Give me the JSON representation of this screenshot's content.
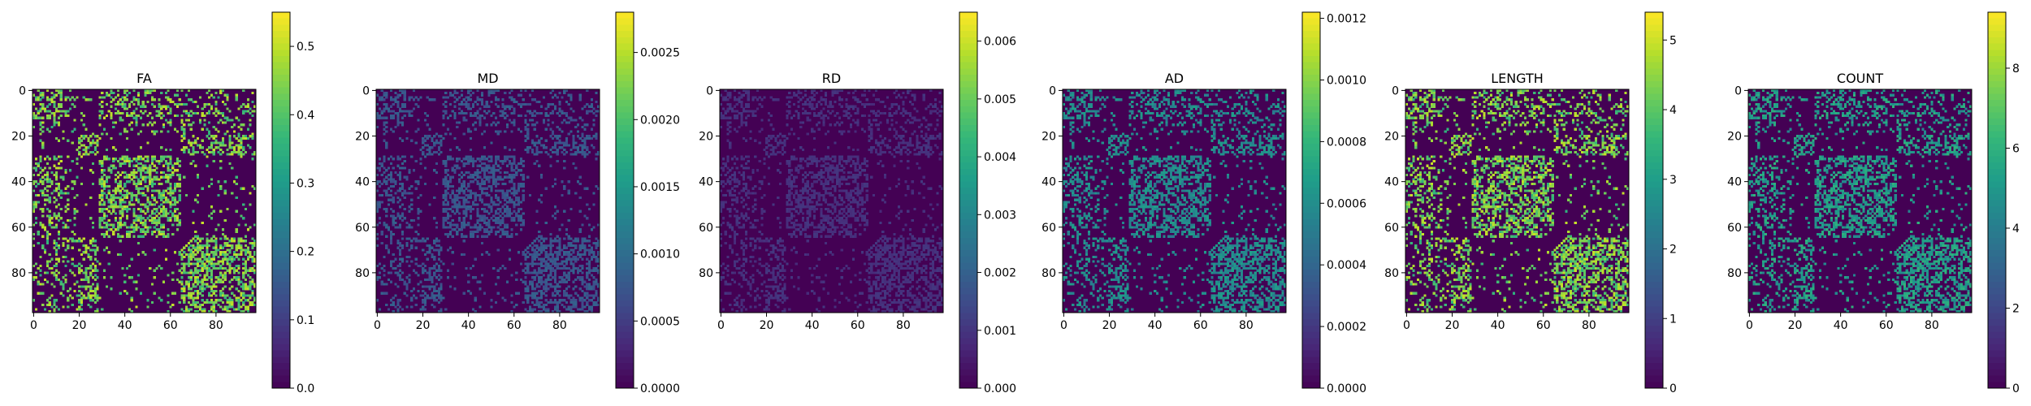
{
  "figure": {
    "background": "#ffffff"
  },
  "chart_data": [
    {
      "type": "heatmap",
      "title": "FA",
      "xlabel": "",
      "ylabel": "",
      "matrix_size": 98,
      "xticks": [
        "0",
        "20",
        "40",
        "60",
        "80"
      ],
      "yticks": [
        "0",
        "20",
        "40",
        "60",
        "80"
      ],
      "colormap": "viridis",
      "vmin": 0.0,
      "vmax": 0.55,
      "colorbar_ticks": [
        "0.0",
        "0.1",
        "0.2",
        "0.3",
        "0.4",
        "0.5"
      ],
      "colorbar_tick_values": [
        0.0,
        0.1,
        0.2,
        0.3,
        0.4,
        0.5
      ],
      "typical_value_fraction": 0.78,
      "density_fraction": 0.28,
      "pattern": "block-modular symmetric connectivity; dense blocks near indices 0-12, 20-28, 30-65 and 65-98"
    },
    {
      "type": "heatmap",
      "title": "MD",
      "xlabel": "",
      "ylabel": "",
      "matrix_size": 98,
      "xticks": [
        "0",
        "20",
        "40",
        "60",
        "80"
      ],
      "yticks": [
        "0",
        "20",
        "40",
        "60",
        "80"
      ],
      "colormap": "viridis",
      "vmin": 0.0,
      "vmax": 0.0028,
      "colorbar_ticks": [
        "0.0000",
        "0.0005",
        "0.0010",
        "0.0015",
        "0.0020",
        "0.0025"
      ],
      "colorbar_tick_values": [
        0.0,
        0.0005,
        0.001,
        0.0015,
        0.002,
        0.0025
      ],
      "typical_value_fraction": 0.27,
      "density_fraction": 0.28,
      "pattern": "same connectivity mask as FA with low uniform values"
    },
    {
      "type": "heatmap",
      "title": "RD",
      "xlabel": "",
      "ylabel": "",
      "matrix_size": 98,
      "xticks": [
        "0",
        "20",
        "40",
        "60",
        "80"
      ],
      "yticks": [
        "0",
        "20",
        "40",
        "60",
        "80"
      ],
      "colormap": "viridis",
      "vmin": 0.0,
      "vmax": 0.0065,
      "colorbar_ticks": [
        "0.000",
        "0.001",
        "0.002",
        "0.003",
        "0.004",
        "0.005",
        "0.006"
      ],
      "colorbar_tick_values": [
        0.0,
        0.001,
        0.002,
        0.003,
        0.004,
        0.005,
        0.006
      ],
      "typical_value_fraction": 0.14,
      "density_fraction": 0.28,
      "pattern": "same connectivity mask as FA with very low values"
    },
    {
      "type": "heatmap",
      "title": "AD",
      "xlabel": "",
      "ylabel": "",
      "matrix_size": 98,
      "xticks": [
        "0",
        "20",
        "40",
        "60",
        "80"
      ],
      "yticks": [
        "0",
        "20",
        "40",
        "60",
        "80"
      ],
      "colormap": "viridis",
      "vmin": 0.0,
      "vmax": 0.00122,
      "colorbar_ticks": [
        "0.0000",
        "0.0002",
        "0.0004",
        "0.0006",
        "0.0008",
        "0.0010",
        "0.0012"
      ],
      "colorbar_tick_values": [
        0.0,
        0.0002,
        0.0004,
        0.0006,
        0.0008,
        0.001,
        0.0012
      ],
      "typical_value_fraction": 0.48,
      "density_fraction": 0.28,
      "pattern": "same connectivity mask as FA with mid-range values"
    },
    {
      "type": "heatmap",
      "title": "LENGTH",
      "xlabel": "",
      "ylabel": "",
      "matrix_size": 98,
      "xticks": [
        "0",
        "20",
        "40",
        "60",
        "80"
      ],
      "yticks": [
        "0",
        "20",
        "40",
        "60",
        "80"
      ],
      "colormap": "viridis",
      "vmin": 0.0,
      "vmax": 5.4,
      "colorbar_ticks": [
        "0",
        "1",
        "2",
        "3",
        "4",
        "5"
      ],
      "colorbar_tick_values": [
        0,
        1,
        2,
        3,
        4,
        5
      ],
      "typical_value_fraction": 0.78,
      "density_fraction": 0.28,
      "pattern": "same connectivity mask as FA with high values"
    },
    {
      "type": "heatmap",
      "title": "COUNT",
      "xlabel": "",
      "ylabel": "",
      "matrix_size": 98,
      "xticks": [
        "0",
        "20",
        "40",
        "60",
        "80"
      ],
      "yticks": [
        "0",
        "20",
        "40",
        "60",
        "80"
      ],
      "colormap": "viridis",
      "vmin": 0.0,
      "vmax": 9.4,
      "colorbar_ticks": [
        "0",
        "2",
        "4",
        "6",
        "8"
      ],
      "colorbar_tick_values": [
        0,
        2,
        4,
        6,
        8
      ],
      "typical_value_fraction": 0.55,
      "density_fraction": 0.28,
      "pattern": "same connectivity mask as FA with mixed mid-to-high values"
    }
  ]
}
